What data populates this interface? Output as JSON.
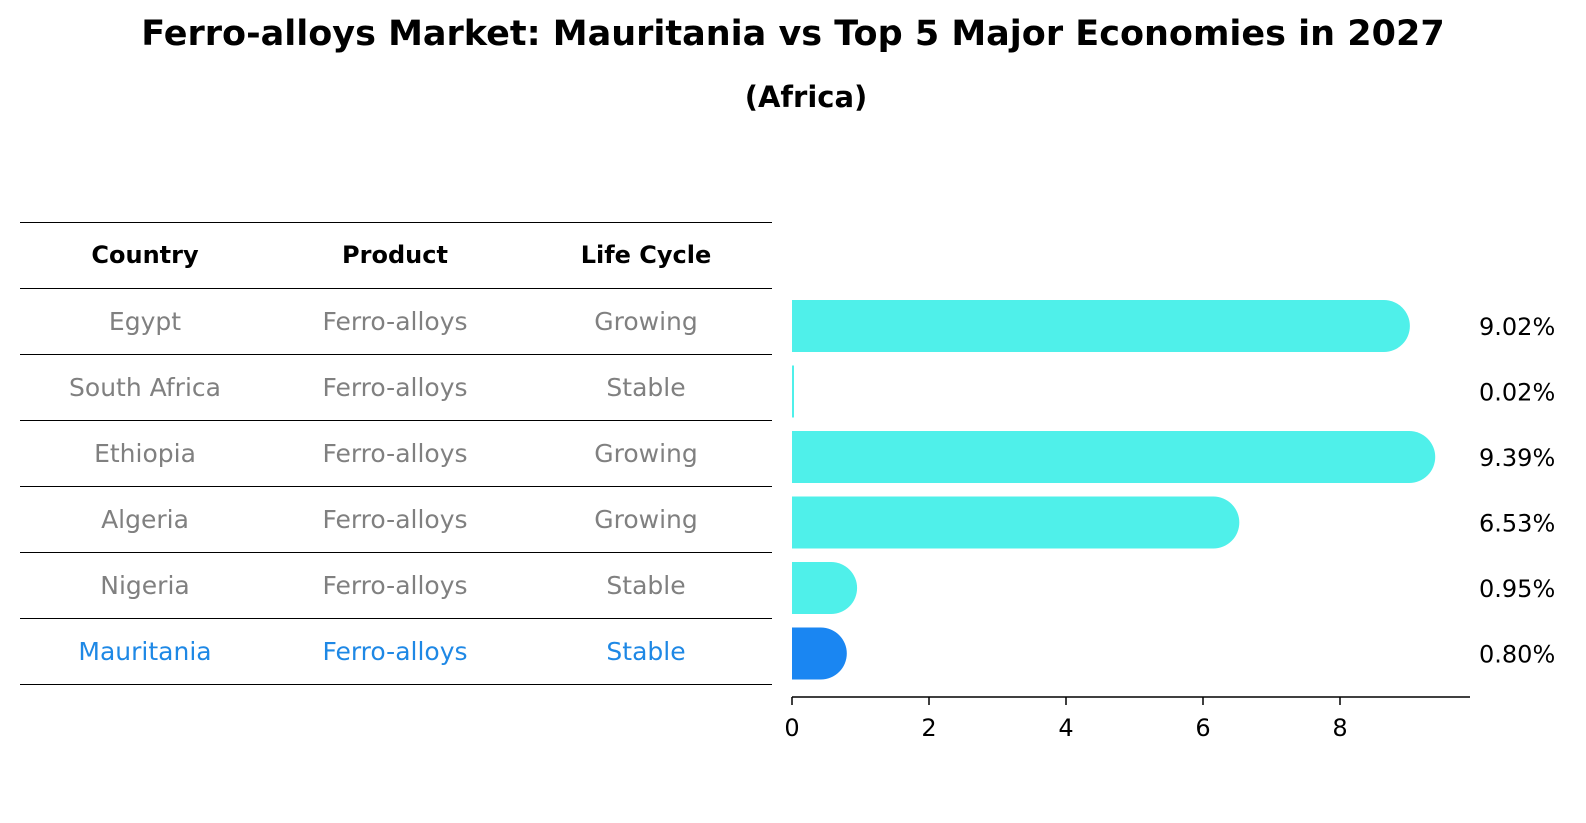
{
  "title": "Ferro-alloys Market: Mauritania vs Top 5 Major Economies in 2027",
  "subtitle": "(Africa)",
  "table": {
    "headers": [
      "Country",
      "Product",
      "Life Cycle"
    ],
    "rows": [
      [
        "Egypt",
        "Ferro-alloys",
        "Growing"
      ],
      [
        "South Africa",
        "Ferro-alloys",
        "Stable"
      ],
      [
        "Ethiopia",
        "Ferro-alloys",
        "Growing"
      ],
      [
        "Algeria",
        "Ferro-alloys",
        "Growing"
      ],
      [
        "Nigeria",
        "Ferro-alloys",
        "Stable"
      ],
      [
        "Mauritania",
        "Ferro-alloys",
        "Stable"
      ]
    ],
    "highlight_row": 5
  },
  "chart_data": {
    "type": "bar",
    "orientation": "horizontal",
    "categories": [
      "Egypt",
      "South Africa",
      "Ethiopia",
      "Algeria",
      "Nigeria",
      "Mauritania"
    ],
    "values": [
      9.02,
      0.02,
      9.39,
      6.53,
      0.95,
      0.8
    ],
    "value_labels": [
      "9.02%",
      "0.02%",
      "9.39%",
      "6.53%",
      "0.95%",
      "0.80%"
    ],
    "xticks": [
      0,
      2,
      4,
      6,
      8
    ],
    "xlim": [
      0,
      9.85
    ],
    "colors": {
      "default": "#4ff0ea",
      "highlight": "#1a86f2"
    },
    "highlight_index": 5
  }
}
